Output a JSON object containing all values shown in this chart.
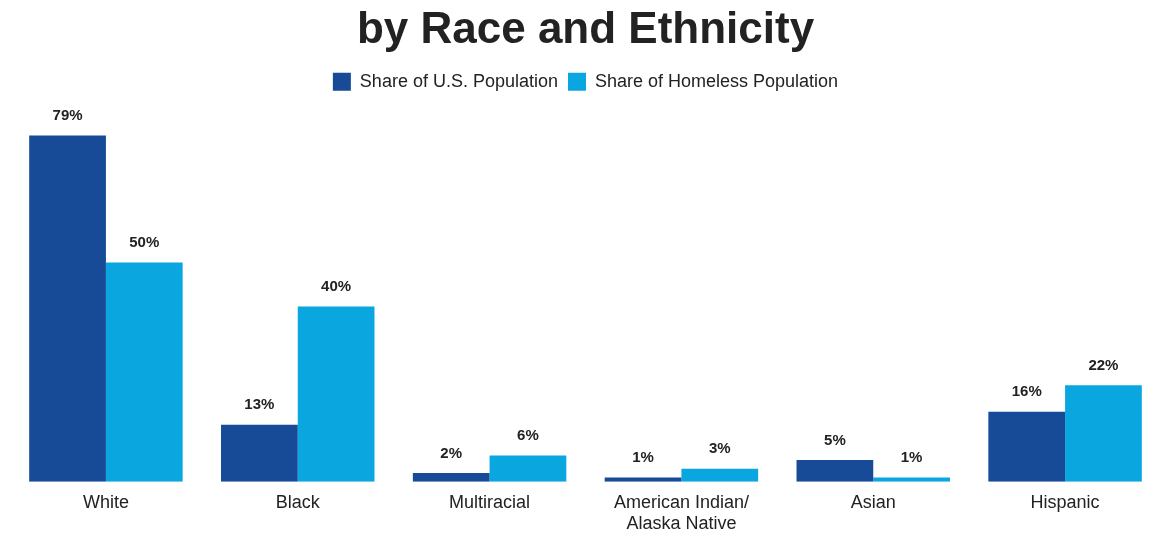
{
  "chart_data": {
    "type": "bar",
    "title": "by Race and Ethnicity",
    "categories": [
      "White",
      "Black",
      "Multiracial",
      "American Indian/\nAlaska Native",
      "Asian",
      "Hispanic"
    ],
    "series": [
      {
        "name": "Share of U.S. Population",
        "color": "#174a97",
        "values": [
          79,
          13,
          2,
          1,
          5,
          16
        ],
        "value_labels": [
          "79%",
          "13%",
          "2%",
          "1%",
          "5%",
          "16%"
        ]
      },
      {
        "name": "Share of Homeless Population",
        "color": "#0aa6e0",
        "values": [
          50,
          40,
          6,
          3,
          1,
          22
        ],
        "value_labels": [
          "50%",
          "40%",
          "6%",
          "3%",
          "1%",
          "22%"
        ]
      }
    ],
    "legend": "top",
    "grid": false,
    "tick_labels": "x"
  }
}
